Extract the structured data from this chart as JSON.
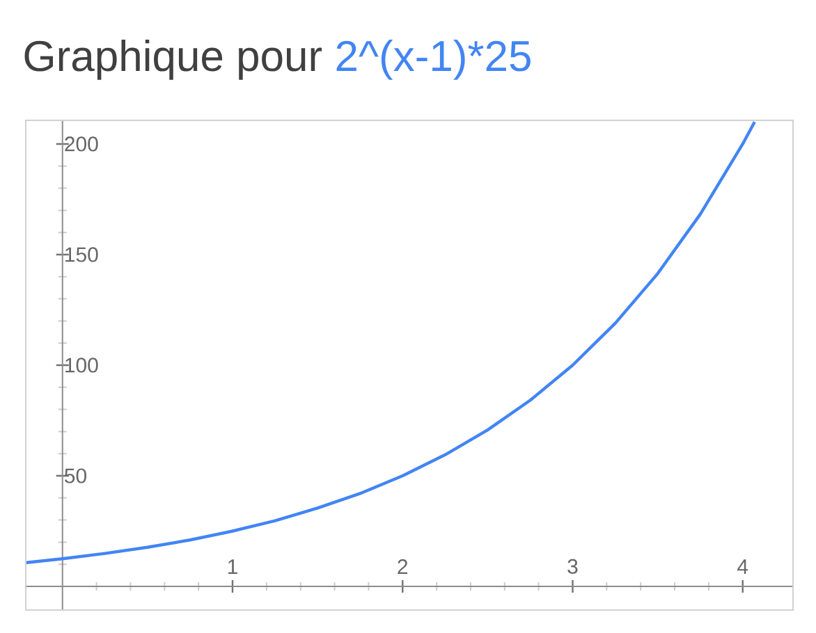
{
  "chart_data": {
    "type": "line",
    "title": "Graphique pour",
    "series": [
      {
        "name": "2^(x-1)*25",
        "color": "#4285f4",
        "x": [
          -0.22,
          0,
          0.25,
          0.5,
          0.75,
          1,
          1.25,
          1.5,
          1.75,
          2,
          2.25,
          2.5,
          2.75,
          3,
          3.25,
          3.5,
          3.75,
          4,
          4.07
        ],
        "values": [
          10.7,
          12.5,
          14.9,
          17.7,
          21.0,
          25,
          29.7,
          35.4,
          42.0,
          50,
          59.5,
          70.7,
          84.1,
          100,
          118.9,
          141.4,
          168.2,
          200,
          210
        ]
      }
    ],
    "xlim": [
      -0.22,
      4.3
    ],
    "ylim": [
      -11,
      211
    ],
    "xticks": [
      {
        "value": 0,
        "label": null
      },
      1,
      2,
      3,
      4
    ],
    "yticks": [
      {
        "value": 0,
        "label": null
      },
      50,
      100,
      150,
      200
    ],
    "grid": false,
    "legend": false
  }
}
